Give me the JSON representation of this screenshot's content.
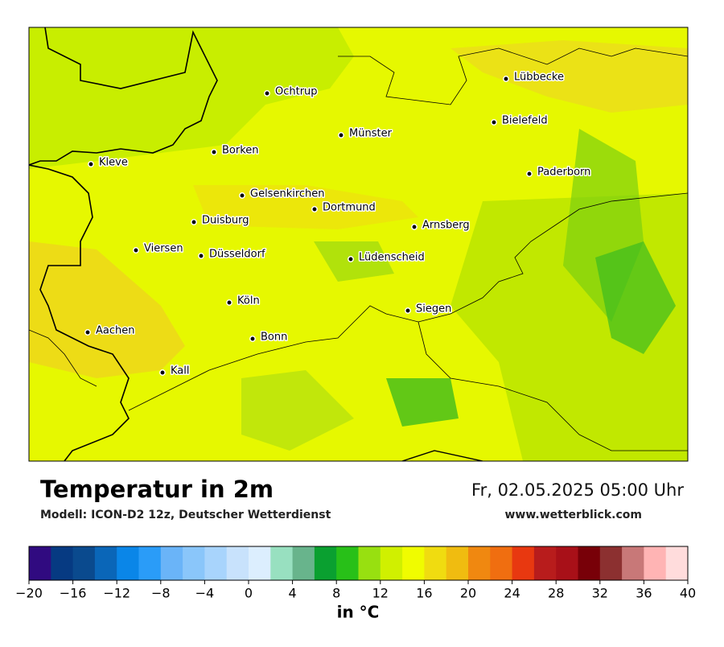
{
  "map": {
    "cities": [
      "Ochtrup",
      "Lübbecke",
      "Bielefeld",
      "Münster",
      "Borken",
      "Kleve",
      "Paderborn",
      "Gelsenkirchen",
      "Dortmund",
      "Duisburg",
      "Arnsberg",
      "Viersen",
      "Düsseldorf",
      "Lüdenscheid",
      "Köln",
      "Siegen",
      "Aachen",
      "Bonn",
      "Kall"
    ]
  },
  "footer": {
    "title": "Temperatur in 2m",
    "model": "Modell: ICON-D2 12z, Deutscher Wetterdienst",
    "datetime": "Fr, 02.05.2025 05:00 Uhr",
    "website": "www.wetterblick.com"
  },
  "colorbar": {
    "min": -20,
    "max": 40,
    "label": "in °C",
    "colors": [
      "#300a80",
      "#063a82",
      "#0a4a8e",
      "#0a66b8",
      "#0a86e8",
      "#2a9cf8",
      "#6ab4f8",
      "#8ac6fa",
      "#a8d4fc",
      "#c8e2fc",
      "#dceefe",
      "#98e0c0",
      "#68b48c",
      "#0aa030",
      "#28c018",
      "#98e010",
      "#d0f000",
      "#f0fc00",
      "#f0dc10",
      "#f0bc10",
      "#f08810",
      "#f06e10",
      "#e83810",
      "#b81c1c",
      "#a81018",
      "#780008",
      "#8c3030",
      "#c87878",
      "#ffb4b4",
      "#ffdcdc"
    ],
    "ticks": [
      {
        "value": -20,
        "label": "−20"
      },
      {
        "value": -16,
        "label": "−16"
      },
      {
        "value": -12,
        "label": "−12"
      },
      {
        "value": -8,
        "label": "−8"
      },
      {
        "value": -4,
        "label": "−4"
      },
      0,
      4,
      8,
      12,
      16,
      20,
      24,
      28,
      32,
      36,
      40
    ]
  }
}
